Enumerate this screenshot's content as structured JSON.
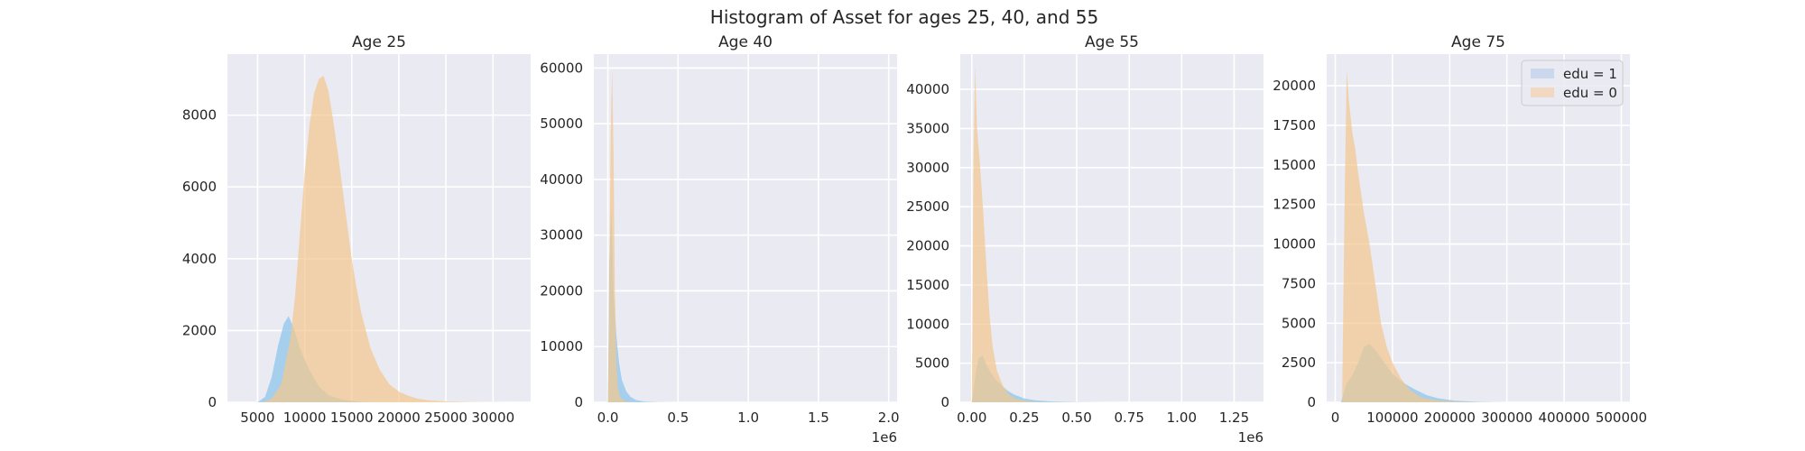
{
  "figure_title": "Histogram of Asset for ages 25, 40, and 55",
  "legend": [
    {
      "label": "edu = 1",
      "color": "#aec7e8"
    },
    {
      "label": "edu = 0",
      "color": "#f5c89a"
    }
  ],
  "colors": {
    "edu1": "#8ec5ea",
    "edu0": "#f2c78f",
    "background": "#eaeaf2",
    "grid": "#ffffff"
  },
  "chart_data": [
    {
      "type": "histogram",
      "title": "Age 25",
      "xlim": [
        1800,
        34000
      ],
      "ylim": [
        0,
        9700
      ],
      "xticks": [
        5000,
        10000,
        15000,
        20000,
        25000,
        30000
      ],
      "xtick_labels": [
        "5000",
        "10000",
        "15000",
        "20000",
        "25000",
        "30000"
      ],
      "yticks": [
        0,
        2000,
        4000,
        6000,
        8000
      ],
      "ytick_labels": [
        "0",
        "2000",
        "4000",
        "6000",
        "8000"
      ],
      "x_offset_label": "",
      "series": [
        {
          "name": "edu = 1",
          "points": [
            [
              5000,
              0
            ],
            [
              5800,
              150
            ],
            [
              6500,
              700
            ],
            [
              7200,
              1600
            ],
            [
              7800,
              2200
            ],
            [
              8300,
              2400
            ],
            [
              8800,
              2100
            ],
            [
              9500,
              1500
            ],
            [
              10500,
              900
            ],
            [
              11500,
              450
            ],
            [
              12500,
              200
            ],
            [
              14000,
              70
            ],
            [
              16000,
              10
            ],
            [
              17000,
              0
            ]
          ]
        },
        {
          "name": "edu = 0",
          "points": [
            [
              5500,
              0
            ],
            [
              6500,
              100
            ],
            [
              7500,
              500
            ],
            [
              8500,
              1800
            ],
            [
              9000,
              3000
            ],
            [
              9500,
              4700
            ],
            [
              10000,
              6400
            ],
            [
              10500,
              7700
            ],
            [
              11000,
              8600
            ],
            [
              11500,
              9000
            ],
            [
              12000,
              9100
            ],
            [
              12500,
              8700
            ],
            [
              13000,
              7900
            ],
            [
              13500,
              7000
            ],
            [
              14000,
              6000
            ],
            [
              14500,
              5000
            ],
            [
              15000,
              4000
            ],
            [
              15500,
              3200
            ],
            [
              16000,
              2500
            ],
            [
              17000,
              1500
            ],
            [
              18000,
              900
            ],
            [
              19000,
              500
            ],
            [
              20000,
              300
            ],
            [
              21000,
              180
            ],
            [
              22000,
              100
            ],
            [
              23000,
              60
            ],
            [
              25000,
              25
            ],
            [
              28000,
              5
            ],
            [
              32000,
              0
            ]
          ]
        }
      ]
    },
    {
      "type": "histogram",
      "title": "Age 40",
      "xlim": [
        -100000,
        2060000
      ],
      "ylim": [
        0,
        62500
      ],
      "xticks": [
        0,
        500000,
        1000000,
        1500000,
        2000000
      ],
      "xtick_labels": [
        "0.0",
        "0.5",
        "1.0",
        "1.5",
        "2.0"
      ],
      "yticks": [
        0,
        10000,
        20000,
        30000,
        40000,
        50000,
        60000
      ],
      "ytick_labels": [
        "0",
        "10000",
        "20000",
        "30000",
        "40000",
        "50000",
        "60000"
      ],
      "x_offset_label": "1e6",
      "series": [
        {
          "name": "edu = 1",
          "points": [
            [
              0,
              0
            ],
            [
              10000,
              25000
            ],
            [
              25000,
              35000
            ],
            [
              40000,
              20000
            ],
            [
              60000,
              12000
            ],
            [
              80000,
              7000
            ],
            [
              100000,
              4000
            ],
            [
              130000,
              2000
            ],
            [
              160000,
              1000
            ],
            [
              200000,
              400
            ],
            [
              260000,
              120
            ],
            [
              350000,
              30
            ],
            [
              500000,
              0
            ]
          ]
        },
        {
          "name": "edu = 0",
          "points": [
            [
              0,
              0
            ],
            [
              8000,
              15000
            ],
            [
              20000,
              48000
            ],
            [
              30000,
              60000
            ],
            [
              40000,
              45000
            ],
            [
              50000,
              20000
            ],
            [
              60000,
              8000
            ],
            [
              70000,
              3000
            ],
            [
              85000,
              1000
            ],
            [
              110000,
              300
            ],
            [
              150000,
              50
            ],
            [
              200000,
              0
            ]
          ]
        }
      ]
    },
    {
      "type": "histogram",
      "title": "Age 55",
      "xlim": [
        -55000,
        1390000
      ],
      "ylim": [
        0,
        44500
      ],
      "xticks": [
        0,
        250000,
        500000,
        750000,
        1000000,
        1250000
      ],
      "xtick_labels": [
        "0.00",
        "0.25",
        "0.50",
        "0.75",
        "1.00",
        "1.25"
      ],
      "yticks": [
        0,
        5000,
        10000,
        15000,
        20000,
        25000,
        30000,
        35000,
        40000
      ],
      "ytick_labels": [
        "0",
        "5000",
        "10000",
        "15000",
        "20000",
        "25000",
        "30000",
        "35000",
        "40000"
      ],
      "x_offset_label": "1e6",
      "series": [
        {
          "name": "edu = 1",
          "points": [
            [
              0,
              0
            ],
            [
              15000,
              3000
            ],
            [
              30000,
              5500
            ],
            [
              50000,
              6000
            ],
            [
              70000,
              4800
            ],
            [
              90000,
              3800
            ],
            [
              110000,
              3000
            ],
            [
              140000,
              2200
            ],
            [
              170000,
              1500
            ],
            [
              200000,
              1000
            ],
            [
              250000,
              500
            ],
            [
              300000,
              250
            ],
            [
              380000,
              100
            ],
            [
              500000,
              30
            ],
            [
              700000,
              0
            ]
          ]
        },
        {
          "name": "edu = 0",
          "points": [
            [
              0,
              0
            ],
            [
              8000,
              30000
            ],
            [
              15000,
              43000
            ],
            [
              25000,
              35000
            ],
            [
              40000,
              30000
            ],
            [
              55000,
              24000
            ],
            [
              70000,
              17000
            ],
            [
              85000,
              11000
            ],
            [
              100000,
              7000
            ],
            [
              120000,
              4000
            ],
            [
              150000,
              2000
            ],
            [
              180000,
              900
            ],
            [
              220000,
              300
            ],
            [
              280000,
              80
            ],
            [
              350000,
              0
            ]
          ]
        }
      ]
    },
    {
      "type": "histogram",
      "title": "Age 75",
      "xlim": [
        -15000,
        515000
      ],
      "ylim": [
        0,
        22000
      ],
      "xticks": [
        0,
        100000,
        200000,
        300000,
        400000,
        500000
      ],
      "xtick_labels": [
        "0",
        "100000",
        "200000",
        "300000",
        "400000",
        "500000"
      ],
      "yticks": [
        0,
        2500,
        5000,
        7500,
        10000,
        12500,
        15000,
        17500,
        20000
      ],
      "ytick_labels": [
        "0",
        "2500",
        "5000",
        "7500",
        "10000",
        "12500",
        "15000",
        "17500",
        "20000"
      ],
      "x_offset_label": "",
      "series": [
        {
          "name": "edu = 1",
          "points": [
            [
              10000,
              0
            ],
            [
              20000,
              1200
            ],
            [
              30000,
              1700
            ],
            [
              40000,
              2500
            ],
            [
              50000,
              3500
            ],
            [
              60000,
              3700
            ],
            [
              70000,
              3300
            ],
            [
              80000,
              2800
            ],
            [
              90000,
              2300
            ],
            [
              100000,
              1800
            ],
            [
              120000,
              1200
            ],
            [
              140000,
              800
            ],
            [
              160000,
              450
            ],
            [
              180000,
              250
            ],
            [
              210000,
              100
            ],
            [
              250000,
              30
            ],
            [
              300000,
              0
            ]
          ]
        },
        {
          "name": "edu = 0",
          "points": [
            [
              12000,
              0
            ],
            [
              16000,
              12000
            ],
            [
              20000,
              21000
            ],
            [
              24000,
              19000
            ],
            [
              30000,
              17000
            ],
            [
              35000,
              16000
            ],
            [
              40000,
              14500
            ],
            [
              50000,
              12000
            ],
            [
              60000,
              10000
            ],
            [
              70000,
              7500
            ],
            [
              80000,
              5000
            ],
            [
              90000,
              3500
            ],
            [
              100000,
              2500
            ],
            [
              115000,
              1500
            ],
            [
              130000,
              800
            ],
            [
              150000,
              300
            ],
            [
              180000,
              100
            ],
            [
              220000,
              20
            ],
            [
              260000,
              0
            ]
          ]
        }
      ]
    }
  ]
}
